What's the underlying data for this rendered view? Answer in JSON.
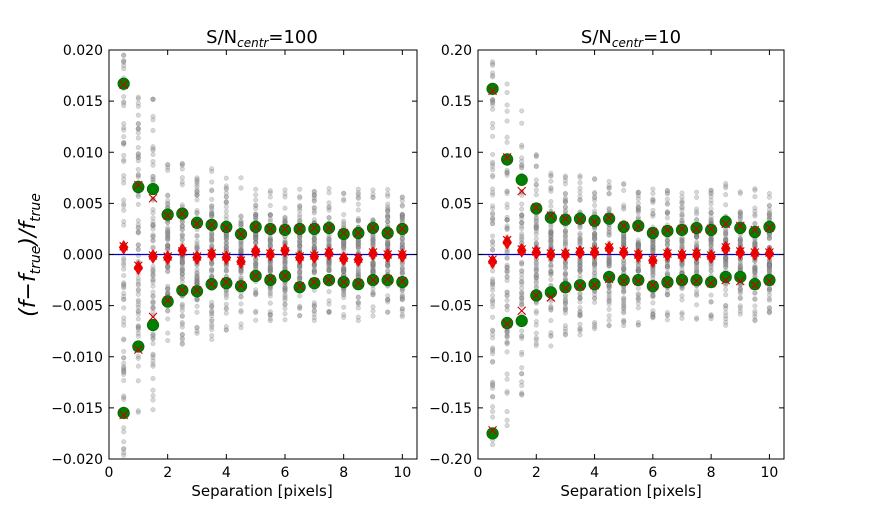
{
  "figure": {
    "ylabel_main": "(f",
    "ylabel_minus": "−",
    "ylabel_f": "f",
    "ylabel_sub_true": "true",
    "ylabel_close": ")/",
    "colors": {
      "scatter": "#8c8c8c",
      "mean": "#ff0000",
      "mean_alt": "#cc0000",
      "sigma": "#008000",
      "zero_line": "#0000cc"
    }
  },
  "chart_data": [
    {
      "type": "scatter",
      "title_prefix": "S/N",
      "title_sub": "centr",
      "title_suffix": "=100",
      "xlabel": "Separation [pixels]",
      "xlim": [
        0,
        10.5
      ],
      "ylim": [
        -0.02,
        0.02
      ],
      "xticks": [
        0,
        2,
        4,
        6,
        8,
        10
      ],
      "xtick_labels": [
        "0",
        "2",
        "4",
        "6",
        "8",
        "10"
      ],
      "yticks": [
        -0.02,
        -0.015,
        -0.01,
        -0.005,
        0.0,
        0.005,
        0.01,
        0.015,
        0.02
      ],
      "ytick_labels": [
        "−0.020",
        "−0.015",
        "−0.010",
        "−0.005",
        "0.000",
        "0.005",
        "0.010",
        "0.015",
        "0.020"
      ],
      "reference_line": 0,
      "x": [
        0.5,
        1.0,
        1.5,
        2.0,
        2.5,
        3.0,
        3.5,
        4.0,
        4.5,
        5.0,
        5.5,
        6.0,
        6.5,
        7.0,
        7.5,
        8.0,
        8.5,
        9.0,
        9.5,
        10.0
      ],
      "scatter_spread": [
        0.02,
        0.016,
        0.016,
        0.009,
        0.009,
        0.008,
        0.0085,
        0.0075,
        0.0075,
        0.0065,
        0.0065,
        0.0065,
        0.0065,
        0.0065,
        0.0065,
        0.0065,
        0.0065,
        0.0065,
        0.0065,
        0.0065
      ],
      "series": [
        {
          "name": "mean",
          "marker": "diamond",
          "values": [
            0.0007,
            -0.0013,
            -0.0002,
            -0.0003,
            0.0004,
            -0.0003,
            0.0,
            -0.0003,
            -0.0007,
            0.0003,
            0.0,
            0.0004,
            -0.0003,
            -0.0002,
            0.0001,
            -0.0004,
            -0.0005,
            0.0001,
            -0.0001,
            -0.0001
          ]
        },
        {
          "name": "mean (alt)",
          "marker": "x",
          "values": [
            0.0008,
            -0.0011,
            -0.0001,
            -0.0002,
            0.0003,
            -0.0002,
            0.0001,
            -0.0002,
            -0.0006,
            0.0002,
            0.0001,
            0.0003,
            -0.0002,
            -0.0001,
            0.0002,
            -0.0003,
            -0.0004,
            0.0002,
            0.0,
            0.0
          ]
        },
        {
          "name": "+1 sigma",
          "marker": "circle",
          "values": [
            0.0167,
            0.0066,
            0.0064,
            0.0039,
            0.004,
            0.0031,
            0.0029,
            0.0027,
            0.002,
            0.0027,
            0.0025,
            0.0024,
            0.0025,
            0.0025,
            0.0026,
            0.002,
            0.0021,
            0.0026,
            0.0021,
            0.0025
          ]
        },
        {
          "name": "-1 sigma",
          "marker": "circle",
          "values": [
            -0.0155,
            -0.009,
            -0.0069,
            -0.0046,
            -0.0035,
            -0.0036,
            -0.0029,
            -0.0028,
            -0.0031,
            -0.0021,
            -0.0025,
            -0.0021,
            -0.0032,
            -0.0028,
            -0.0025,
            -0.0027,
            -0.0029,
            -0.0025,
            -0.0025,
            -0.0027
          ]
        },
        {
          "name": "+1 sigma (alt)",
          "marker": "x",
          "values": [
            0.0166,
            0.0068,
            0.0055,
            0.0038,
            0.004,
            0.003,
            0.0029,
            0.0026,
            0.002,
            0.0027,
            0.0025,
            0.0025,
            0.0025,
            0.0026,
            0.0026,
            0.0021,
            0.0021,
            0.0026,
            0.0021,
            0.0025
          ]
        },
        {
          "name": "-1 sigma (alt)",
          "marker": "x",
          "values": [
            -0.0157,
            -0.0093,
            -0.0061,
            -0.0045,
            -0.0035,
            -0.0035,
            -0.0029,
            -0.0027,
            -0.003,
            -0.0021,
            -0.0024,
            -0.0021,
            -0.0031,
            -0.0027,
            -0.0025,
            -0.0027,
            -0.0028,
            -0.0025,
            -0.0024,
            -0.0026
          ]
        }
      ]
    },
    {
      "type": "scatter",
      "title_prefix": "S/N",
      "title_sub": "centr",
      "title_suffix": "=10",
      "xlabel": "Separation [pixels]",
      "xlim": [
        0,
        10.5
      ],
      "ylim": [
        -0.2,
        0.2
      ],
      "xticks": [
        0,
        2,
        4,
        6,
        8,
        10
      ],
      "xtick_labels": [
        "0",
        "2",
        "4",
        "6",
        "8",
        "10"
      ],
      "yticks": [
        -0.2,
        -0.15,
        -0.1,
        -0.05,
        0.0,
        0.05,
        0.1,
        0.15,
        0.2
      ],
      "ytick_labels": [
        "−0.20",
        "−0.15",
        "−0.10",
        "−0.05",
        "0.00",
        "0.05",
        "0.10",
        "0.15",
        "0.20"
      ],
      "reference_line": 0,
      "x": [
        0.5,
        1.0,
        1.5,
        2.0,
        2.5,
        3.0,
        3.5,
        4.0,
        4.5,
        5.0,
        5.5,
        6.0,
        6.5,
        7.0,
        7.5,
        8.0,
        8.5,
        9.0,
        9.5,
        10.0
      ],
      "scatter_spread": [
        0.19,
        0.17,
        0.15,
        0.1,
        0.09,
        0.08,
        0.08,
        0.075,
        0.075,
        0.07,
        0.07,
        0.065,
        0.065,
        0.065,
        0.065,
        0.065,
        0.07,
        0.065,
        0.065,
        0.065
      ],
      "series": [
        {
          "name": "mean",
          "marker": "diamond",
          "values": [
            -0.007,
            0.012,
            0.004,
            0.002,
            0.0,
            0.0,
            0.002,
            0.002,
            0.006,
            0.002,
            -0.001,
            -0.006,
            0.0,
            -0.001,
            0.0,
            -0.002,
            0.006,
            0.002,
            0.001,
            0.001
          ]
        },
        {
          "name": "mean (alt)",
          "marker": "x",
          "values": [
            -0.005,
            0.014,
            0.005,
            0.003,
            0.001,
            0.001,
            0.003,
            0.003,
            0.007,
            0.003,
            0.0,
            -0.005,
            0.001,
            0.0,
            0.001,
            -0.001,
            0.007,
            0.003,
            0.002,
            0.002
          ]
        },
        {
          "name": "+1 sigma",
          "marker": "circle",
          "values": [
            0.162,
            0.093,
            0.073,
            0.045,
            0.036,
            0.034,
            0.035,
            0.033,
            0.035,
            0.027,
            0.028,
            0.021,
            0.023,
            0.024,
            0.026,
            0.024,
            0.032,
            0.026,
            0.022,
            0.027
          ]
        },
        {
          "name": "-1 sigma",
          "marker": "circle",
          "values": [
            -0.175,
            -0.067,
            -0.065,
            -0.04,
            -0.037,
            -0.032,
            -0.03,
            -0.029,
            -0.022,
            -0.025,
            -0.025,
            -0.031,
            -0.027,
            -0.025,
            -0.025,
            -0.027,
            -0.022,
            -0.022,
            -0.029,
            -0.025
          ]
        },
        {
          "name": "+1 sigma (alt)",
          "marker": "x",
          "values": [
            0.16,
            0.095,
            0.062,
            0.046,
            0.038,
            0.035,
            0.034,
            0.032,
            0.036,
            0.028,
            0.027,
            0.022,
            0.024,
            0.025,
            0.025,
            0.025,
            0.03,
            0.028,
            0.024,
            0.026
          ]
        },
        {
          "name": "-1 sigma (alt)",
          "marker": "x",
          "values": [
            -0.172,
            -0.068,
            -0.055,
            -0.04,
            -0.042,
            -0.033,
            -0.031,
            -0.03,
            -0.024,
            -0.026,
            -0.026,
            -0.03,
            -0.028,
            -0.026,
            -0.026,
            -0.028,
            -0.025,
            -0.026,
            -0.03,
            -0.026
          ]
        }
      ]
    }
  ]
}
